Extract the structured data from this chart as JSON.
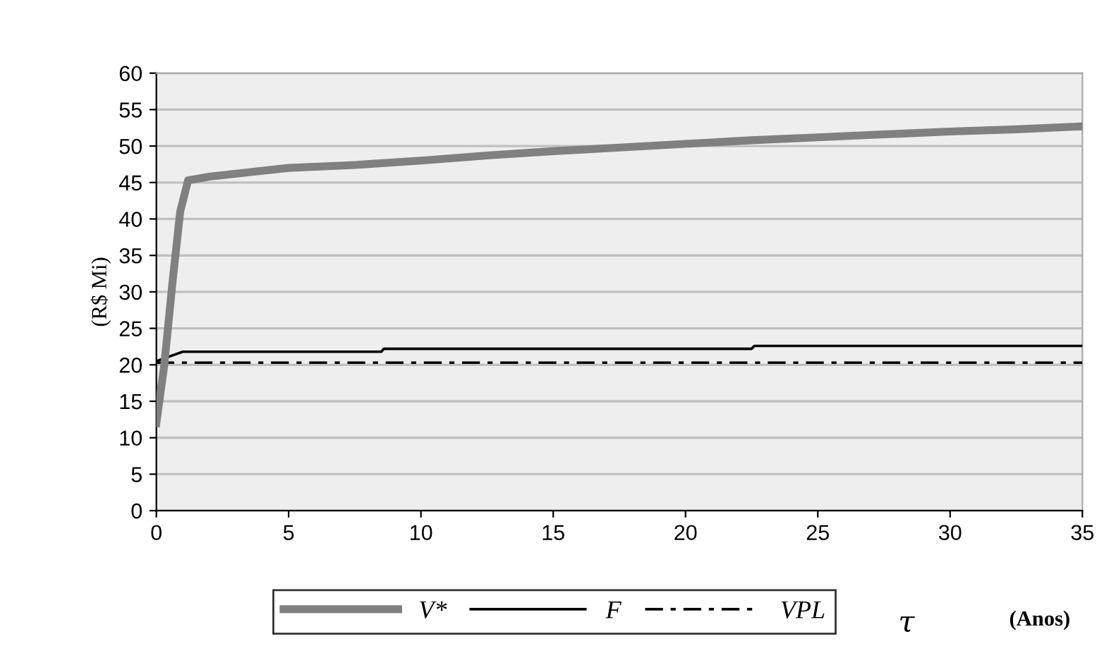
{
  "chart_data": {
    "type": "line",
    "ylabel": "(R$ Mi)",
    "xlabel": "τ",
    "annotations": [
      "(Anos)"
    ],
    "xlim": [
      0,
      35
    ],
    "xticks": [
      0,
      5,
      10,
      15,
      20,
      25,
      30,
      35
    ],
    "ylim": [
      0,
      60
    ],
    "yticks": [
      0,
      5,
      10,
      15,
      20,
      25,
      30,
      35,
      40,
      45,
      50,
      55,
      60
    ],
    "grid": "y",
    "legend": "bottom",
    "marker": "none",
    "series": [
      {
        "name": "V*",
        "color": "#808080",
        "line_style": "solid",
        "x": [
          0,
          0.3,
          0.6,
          0.9,
          1.2,
          2,
          3.5,
          5,
          7.5,
          10,
          12.5,
          15,
          17.5,
          20,
          22.5,
          25,
          27.5,
          30,
          32.5,
          35
        ],
        "values": [
          12,
          20,
          31,
          41,
          45.3,
          45.8,
          46.4,
          47,
          47.4,
          48,
          48.7,
          49.3,
          49.8,
          50.3,
          50.8,
          51.2,
          51.6,
          52,
          52.3,
          52.7
        ]
      },
      {
        "name": "F",
        "color": "#000000",
        "line_style": "solid",
        "x": [
          0,
          1,
          8.5,
          8.6,
          22.5,
          22.6,
          35
        ],
        "values": [
          20.5,
          21.8,
          21.8,
          22.2,
          22.2,
          22.6,
          22.6
        ]
      },
      {
        "name": "VPL",
        "color": "#000000",
        "line_style": "dashed",
        "x": [
          0,
          35
        ],
        "values": [
          20.3,
          20.3
        ]
      }
    ]
  }
}
